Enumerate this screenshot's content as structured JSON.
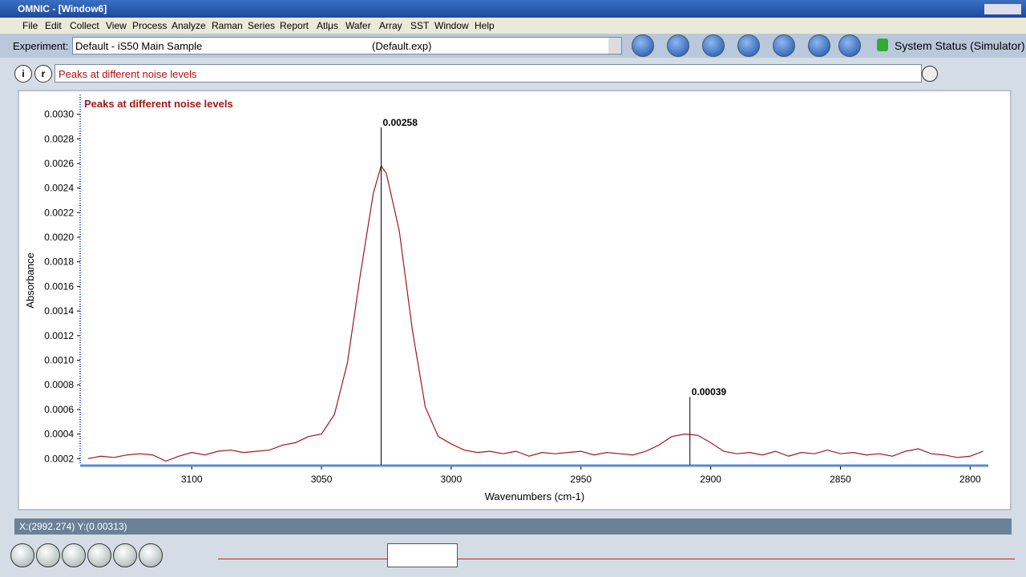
{
  "window": {
    "title": "OMNIC - [Window6]"
  },
  "menu": [
    "File",
    "Edit",
    "Collect",
    "View",
    "Process",
    "Analyze",
    "Raman",
    "Series",
    "Report",
    "Atlμs",
    "Wafer",
    "Array",
    "SST",
    "Window",
    "Help"
  ],
  "experiment": {
    "label": "Experiment:",
    "value": "Default - iS50 Main Sample",
    "file": "(Default.exp)"
  },
  "system_status": "System Status (Simulator)",
  "info_box": "Peaks at different noise levels",
  "status_bar": "X:(2992.274) Y:(0.00313)",
  "chart_data": {
    "type": "line",
    "title": "Peaks at different noise levels",
    "xlabel": "Wavenumbers (cm-1)",
    "ylabel": "Absorbance",
    "xlim": [
      3143,
      2793
    ],
    "ylim": [
      0.00015,
      0.00316
    ],
    "xticks": [
      3100,
      3050,
      3000,
      2950,
      2900,
      2850,
      2800
    ],
    "yticks": [
      0.0002,
      0.0004,
      0.0006,
      0.0008,
      {
        "value": 0.001,
        "label": "0.0010"
      },
      0.0012,
      0.0014,
      0.0016,
      0.0018,
      {
        "value": 0.002,
        "label": "0.0020"
      },
      0.0022,
      0.0024,
      0.0026,
      0.0028,
      {
        "value": 0.003,
        "label": "0.0030"
      }
    ],
    "x": [
      3140,
      3135,
      3130,
      3125,
      3120,
      3115,
      3110,
      3105,
      3100,
      3095,
      3090,
      3085,
      3080,
      3075,
      3070,
      3065,
      3060,
      3055,
      3050,
      3045,
      3040,
      3035,
      3030,
      3027,
      3025,
      3020,
      3015,
      3010,
      3005,
      3000,
      2995,
      2990,
      2985,
      2980,
      2975,
      2970,
      2965,
      2960,
      2955,
      2950,
      2945,
      2940,
      2935,
      2930,
      2925,
      2920,
      2915,
      2910,
      2905,
      2900,
      2895,
      2890,
      2885,
      2880,
      2875,
      2870,
      2865,
      2860,
      2855,
      2850,
      2845,
      2840,
      2835,
      2830,
      2825,
      2820,
      2815,
      2810,
      2805,
      2800,
      2795
    ],
    "series": [
      {
        "color": "#a01818",
        "values": [
          0.0002,
          0.00022,
          0.00021,
          0.00023,
          0.00024,
          0.00023,
          0.00018,
          0.00022,
          0.00025,
          0.00023,
          0.00026,
          0.00027,
          0.00025,
          0.00026,
          0.00027,
          0.00031,
          0.00033,
          0.00038,
          0.0004,
          0.00056,
          0.00098,
          0.0017,
          0.00236,
          0.00258,
          0.00252,
          0.00205,
          0.00125,
          0.00062,
          0.00038,
          0.00032,
          0.00027,
          0.00025,
          0.00026,
          0.00024,
          0.00026,
          0.00022,
          0.00025,
          0.00024,
          0.00025,
          0.00026,
          0.00023,
          0.00025,
          0.00024,
          0.00023,
          0.00026,
          0.00031,
          0.00038,
          0.0004,
          0.00039,
          0.00033,
          0.00026,
          0.00024,
          0.00025,
          0.00023,
          0.00026,
          0.00022,
          0.00025,
          0.00024,
          0.00027,
          0.00024,
          0.00025,
          0.00023,
          0.00024,
          0.00022,
          0.00026,
          0.00028,
          0.00024,
          0.00023,
          0.00021,
          0.00022,
          0.00026
        ]
      }
    ],
    "peaks": [
      {
        "x": 3027,
        "y": 0.00258
      },
      {
        "x": 2908,
        "y": 0.00039
      }
    ]
  }
}
